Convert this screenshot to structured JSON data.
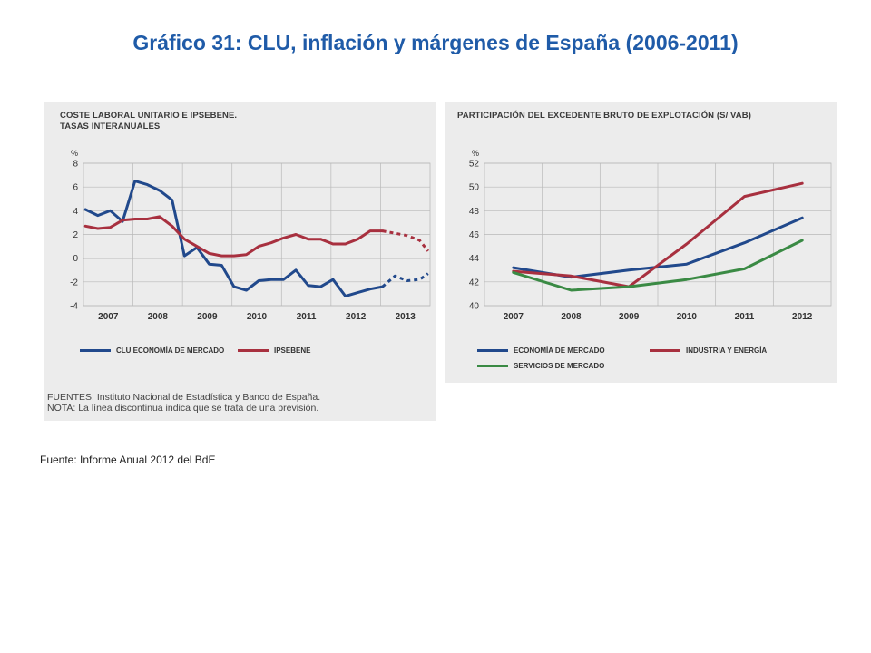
{
  "slide": {
    "title": "Gráfico 31: CLU, inflación y márgenes de España (2006-2011)",
    "source": "Fuente: Informe Anual 2012 del BdE",
    "notes": {
      "fuentes": "FUENTES: Instituto Nacional de Estadística y Banco de España.",
      "nota": "NOTA: La línea discontinua indica que se trata de una previsión."
    }
  },
  "colors": {
    "blue": "#21498c",
    "red": "#a8303f",
    "green": "#3a8a44",
    "grid": "#b9b9b9",
    "panel": "#ececec"
  },
  "chart_data": [
    {
      "type": "line",
      "title_line1": "COSTE LABORAL UNITARIO E IPSEBENE.",
      "title_line2": "TASAS INTERANUALES",
      "ylabel": "%",
      "ylim": [
        -4,
        8
      ],
      "yticks": [
        "8",
        "6",
        "4",
        "2",
        "0",
        "-2",
        "-4"
      ],
      "categories": [
        "2007",
        "2008",
        "2009",
        "2010",
        "2011",
        "2012",
        "2013"
      ],
      "x_range": [
        2006.5,
        2013.5
      ],
      "series": [
        {
          "name": "CLU ECONOMÍA DE MERCADO",
          "color": "#21498c",
          "x": [
            2006.54,
            2006.79,
            2007.04,
            2007.29,
            2007.54,
            2007.79,
            2008.04,
            2008.29,
            2008.54,
            2008.79,
            2009.04,
            2009.29,
            2009.54,
            2009.79,
            2010.04,
            2010.29,
            2010.54,
            2010.79,
            2011.04,
            2011.29,
            2011.54,
            2011.79,
            2012.04,
            2012.29,
            2012.54
          ],
          "values": [
            4.1,
            3.6,
            4.0,
            3.1,
            6.5,
            6.2,
            5.7,
            4.9,
            0.2,
            0.9,
            -0.5,
            -0.6,
            -2.4,
            -2.7,
            -1.9,
            -1.8,
            -1.8,
            -1.0,
            -2.3,
            -2.4,
            -1.8,
            -3.2,
            -2.9,
            -2.6,
            -2.4
          ],
          "forecast_x": [
            2012.54,
            2012.79,
            2013.04,
            2013.29,
            2013.46
          ],
          "forecast_values": [
            -2.4,
            -1.5,
            -1.9,
            -1.8,
            -1.3
          ]
        },
        {
          "name": "IPSEBENE",
          "color": "#a8303f",
          "x": [
            2006.54,
            2006.79,
            2007.04,
            2007.29,
            2007.54,
            2007.79,
            2008.04,
            2008.29,
            2008.54,
            2008.79,
            2009.04,
            2009.29,
            2009.54,
            2009.79,
            2010.04,
            2010.29,
            2010.54,
            2010.79,
            2011.04,
            2011.29,
            2011.54,
            2011.79,
            2012.04,
            2012.29,
            2012.54
          ],
          "values": [
            2.7,
            2.5,
            2.6,
            3.2,
            3.3,
            3.3,
            3.5,
            2.7,
            1.6,
            1.0,
            0.4,
            0.2,
            0.2,
            0.3,
            1.0,
            1.3,
            1.7,
            2.0,
            1.6,
            1.6,
            1.2,
            1.2,
            1.6,
            2.3,
            2.3
          ],
          "forecast_x": [
            2012.54,
            2012.79,
            2013.04,
            2013.29,
            2013.46
          ],
          "forecast_values": [
            2.3,
            2.1,
            1.9,
            1.5,
            0.6
          ]
        }
      ]
    },
    {
      "type": "line",
      "title_line1": "PARTICIPACIÓN DEL EXCEDENTE BRUTO DE EXPLOTACIÓN (S/ VAB)",
      "title_line2": "",
      "ylabel": "%",
      "ylim": [
        40,
        52
      ],
      "yticks": [
        "52",
        "50",
        "48",
        "46",
        "44",
        "42",
        "40"
      ],
      "categories": [
        "2007",
        "2008",
        "2009",
        "2010",
        "2011",
        "2012"
      ],
      "x_range": [
        2006.5,
        2012.5
      ],
      "series": [
        {
          "name": "ECONOMÍA DE MERCADO",
          "color": "#21498c",
          "x": [
            2007,
            2008,
            2009,
            2010,
            2011,
            2012
          ],
          "values": [
            43.2,
            42.4,
            43.0,
            43.5,
            45.3,
            47.4
          ]
        },
        {
          "name": "INDUSTRIA Y ENERGÍA",
          "color": "#a8303f",
          "x": [
            2007,
            2008,
            2009,
            2010,
            2011,
            2012
          ],
          "values": [
            42.9,
            42.5,
            41.6,
            45.2,
            49.2,
            50.3
          ]
        },
        {
          "name": "SERVICIOS DE MERCADO",
          "color": "#3a8a44",
          "x": [
            2007,
            2008,
            2009,
            2010,
            2011,
            2012
          ],
          "values": [
            42.8,
            41.3,
            41.6,
            42.2,
            43.1,
            45.5
          ]
        }
      ]
    }
  ]
}
